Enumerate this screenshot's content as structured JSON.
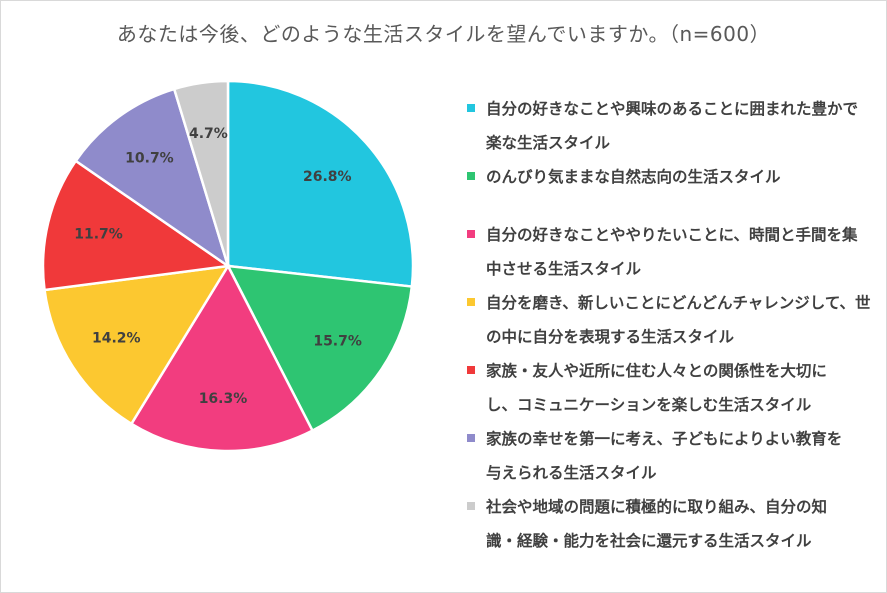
{
  "chart_data": {
    "type": "pie",
    "title": "あなたは今後、どのような生活スタイルを望んでいますか。（n=600）",
    "start_angle_deg": 0,
    "direction": "clockwise",
    "series": [
      {
        "label": "自分の好きなことや興味のあることに囲まれた豊かで楽な生活スタイル",
        "lines": [
          "自分の好きなことや興味のあることに囲まれた豊かで",
          "楽な生活スタイル"
        ],
        "value": 26.8,
        "display": "26.8%",
        "color": "#22c6df"
      },
      {
        "label": "のんびり気ままな自然志向の生活スタイル",
        "lines": [
          "のんびり気ままな自然志向の生活スタイル"
        ],
        "value": 15.7,
        "display": "15.7%",
        "color": "#2ec572"
      },
      {
        "label": "自分の好きなことややりたいことに、時間と手間を集中させる生活スタイル",
        "lines": [
          "自分の好きなことややりたいことに、時間と手間を集",
          "中させる生活スタイル"
        ],
        "value": 16.3,
        "display": "16.3%",
        "color": "#f23d7f"
      },
      {
        "label": "自分を磨き、新しいことにどんどんチャレンジして、世の中に自分を表現する生活スタイル",
        "lines": [
          "自分を磨き、新しいことにどんどんチャレンジして、世",
          "の中に自分を表現する生活スタイル"
        ],
        "value": 14.2,
        "display": "14.2%",
        "color": "#fcc830"
      },
      {
        "label": "家族・友人や近所に住む人々との関係性を大切にし、コミュニケーションを楽しむ生活スタイル",
        "lines": [
          "家族・友人や近所に住む人々との関係性を大切に",
          "し、コミュニケーションを楽しむ生活スタイル"
        ],
        "value": 11.7,
        "display": "11.7%",
        "color": "#f0393a"
      },
      {
        "label": "家族の幸せを第一に考え、子どもによりよい教育を与えられる生活スタイル",
        "lines": [
          "家族の幸せを第一に考え、子どもによりよい教育を",
          "与えられる生活スタイル"
        ],
        "value": 10.7,
        "display": "10.7%",
        "color": "#8f8bcb"
      },
      {
        "label": "社会や地域の問題に積極的に取り組み、自分の知識・経験・能力を社会に還元する生活スタイル",
        "lines": [
          "社会や地域の問題に積極的に取り組み、自分の知",
          "識・経験・能力を社会に還元する生活スタイル"
        ],
        "value": 4.7,
        "display": "4.7%",
        "color": "#cccccc"
      }
    ],
    "legend_position": "right"
  }
}
